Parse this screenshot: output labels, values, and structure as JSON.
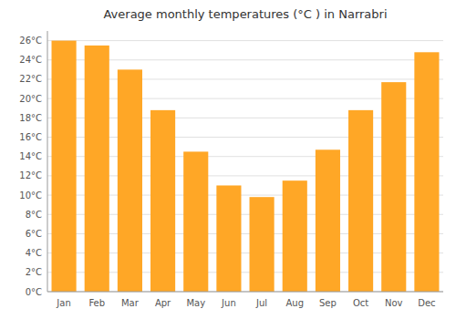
{
  "chart_data": {
    "type": "bar",
    "title": "Average monthly temperatures (°C ) in Narrabri",
    "categories": [
      "Jan",
      "Feb",
      "Mar",
      "Apr",
      "May",
      "Jun",
      "Jul",
      "Aug",
      "Sep",
      "Oct",
      "Nov",
      "Dec"
    ],
    "values": [
      26.0,
      25.5,
      23.0,
      18.8,
      14.5,
      11.0,
      9.8,
      11.5,
      14.7,
      18.8,
      21.7,
      24.8
    ],
    "color": "#FFA726",
    "ylim": [
      0,
      27
    ],
    "yticks": [
      {
        "value": 0,
        "label": "0°C"
      },
      {
        "value": 2,
        "label": "2°C"
      },
      {
        "value": 4,
        "label": "4°C"
      },
      {
        "value": 6,
        "label": "6°C"
      },
      {
        "value": 8,
        "label": "8°C"
      },
      {
        "value": 10,
        "label": "10°C"
      },
      {
        "value": 12,
        "label": "12°C"
      },
      {
        "value": 14,
        "label": "14°C"
      },
      {
        "value": 16,
        "label": "16°C"
      },
      {
        "value": 18,
        "label": "18°C"
      },
      {
        "value": 20,
        "label": "20°C"
      },
      {
        "value": 22,
        "label": "22°C"
      },
      {
        "value": 24,
        "label": "24°C"
      },
      {
        "value": 26,
        "label": "26°C"
      }
    ],
    "grid": true
  }
}
